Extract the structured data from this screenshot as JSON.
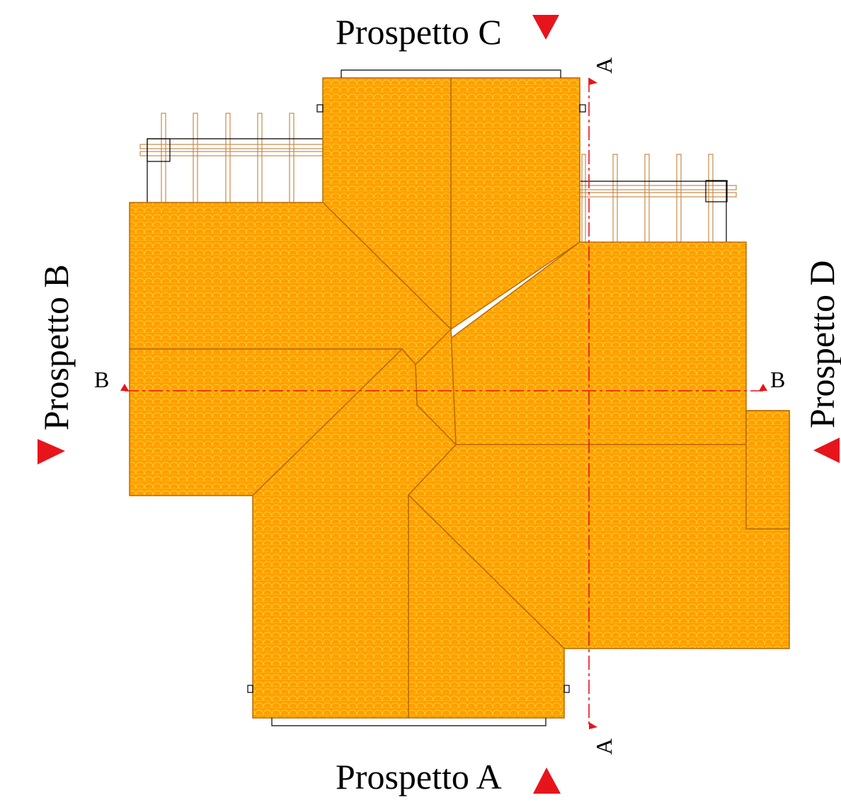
{
  "labels": {
    "prospetto_a": "Prospetto A",
    "prospetto_b": "Prospetto B",
    "prospetto_c": "Prospetto C",
    "prospetto_d": "Prospetto D",
    "section_a": "A",
    "section_b": "B"
  },
  "colors": {
    "roof_fill": "#ff9f00",
    "roof_tile": "#ffcc33",
    "roof_edge": "#b86a00",
    "section_line": "#e8141b",
    "marker": "#e8141b",
    "pergola": "#c98a4a"
  },
  "icons": {
    "elevation_marker": "red-triangle-icon",
    "section_marker": "small-red-triangle-icon"
  }
}
